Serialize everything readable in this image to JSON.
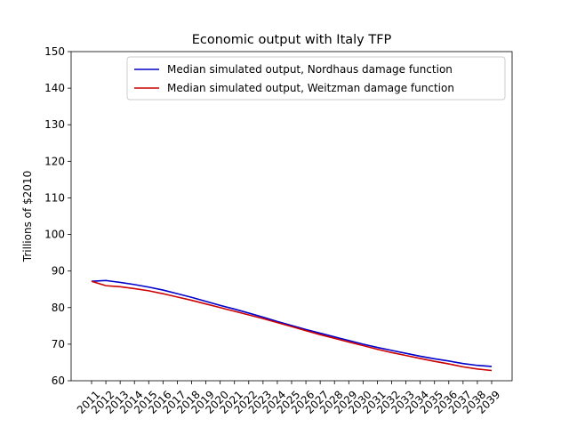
{
  "chart_data": {
    "type": "line",
    "title": "Economic output with Italy TFP",
    "y_label": "Trillions of $2010",
    "categories": [
      "2011",
      "2012",
      "2013",
      "2014",
      "2015",
      "2016",
      "2017",
      "2018",
      "2019",
      "2020",
      "2021",
      "2022",
      "2023",
      "2024",
      "2025",
      "2026",
      "2027",
      "2028",
      "2029",
      "2030",
      "2031",
      "2032",
      "2033",
      "2034",
      "2035",
      "2036",
      "2037",
      "2038",
      "2039"
    ],
    "series": [
      {
        "name": "Median simulated output, Nordhaus damage function",
        "color": "#0000cc",
        "values": [
          87.2,
          87.4,
          86.9,
          86.3,
          85.6,
          84.8,
          83.8,
          82.8,
          81.7,
          80.6,
          79.6,
          78.5,
          77.4,
          76.2,
          75.1,
          74.0,
          73.0,
          72.0,
          71.0,
          70.0,
          69.1,
          68.3,
          67.5,
          66.7,
          66.0,
          65.4,
          64.7,
          64.2,
          63.9
        ]
      },
      {
        "name": "Median simulated output, Weitzman damage function",
        "color": "#cc0000",
        "values": [
          87.2,
          86.0,
          85.7,
          85.2,
          84.6,
          83.8,
          82.9,
          82.0,
          81.0,
          80.0,
          79.0,
          78.0,
          77.0,
          75.9,
          74.8,
          73.7,
          72.6,
          71.6,
          70.6,
          69.6,
          68.6,
          67.7,
          66.9,
          66.1,
          65.3,
          64.6,
          63.8,
          63.2,
          62.8
        ]
      }
    ],
    "ylim": [
      60,
      150
    ],
    "yticks": [
      60,
      70,
      80,
      90,
      100,
      110,
      120,
      130,
      140,
      150
    ],
    "legend": "upper right"
  }
}
